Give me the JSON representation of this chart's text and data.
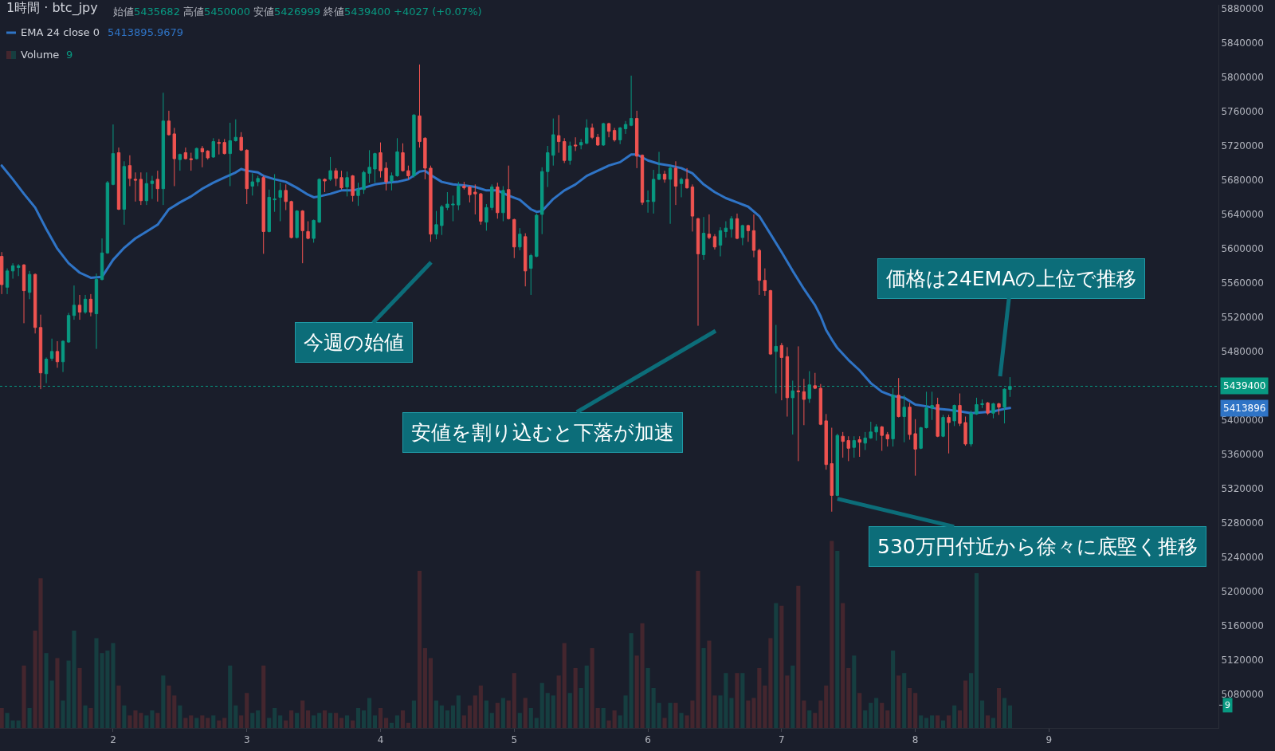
{
  "chart_data": {
    "type": "candlestick",
    "title": "1時間 · btc_jpy",
    "x": [
      1.167,
      1.208,
      1.25,
      1.292,
      1.333,
      1.375,
      1.417,
      1.458,
      1.5,
      1.542,
      1.583,
      1.625,
      1.667,
      1.708,
      1.75,
      1.792,
      1.833,
      1.875,
      1.917,
      1.958,
      2,
      2.042,
      2.083,
      2.125,
      2.167,
      2.208,
      2.25,
      2.292,
      2.333,
      2.375,
      2.417,
      2.458,
      2.5,
      2.542,
      2.583,
      2.625,
      2.667,
      2.708,
      2.75,
      2.792,
      2.833,
      2.875,
      2.917,
      2.958,
      3,
      3.042,
      3.083,
      3.125,
      3.167,
      3.208,
      3.25,
      3.292,
      3.333,
      3.375,
      3.417,
      3.458,
      3.5,
      3.542,
      3.583,
      3.625,
      3.667,
      3.708,
      3.75,
      3.792,
      3.833,
      3.875,
      3.917,
      3.958,
      4,
      4.042,
      4.083,
      4.125,
      4.167,
      4.208,
      4.25,
      4.292,
      4.333,
      4.375,
      4.417,
      4.458,
      4.5,
      4.542,
      4.583,
      4.625,
      4.667,
      4.708,
      4.75,
      4.792,
      4.833,
      4.875,
      4.917,
      4.958,
      5,
      5.042,
      5.083,
      5.125,
      5.167,
      5.208,
      5.25,
      5.292,
      5.333,
      5.375,
      5.417,
      5.458,
      5.5,
      5.542,
      5.583,
      5.625,
      5.667,
      5.708,
      5.75,
      5.792,
      5.833,
      5.875,
      5.917,
      5.958,
      6,
      6.042,
      6.083,
      6.125,
      6.167,
      6.208,
      6.25,
      6.292,
      6.333,
      6.375,
      6.417,
      6.458,
      6.5,
      6.542,
      6.583,
      6.625,
      6.667,
      6.708,
      6.75,
      6.792,
      6.833,
      6.875,
      6.917,
      6.958,
      7,
      7.042,
      7.083,
      7.125,
      7.167,
      7.208,
      7.25,
      7.292,
      7.333,
      7.375,
      7.417,
      7.458,
      7.5,
      7.542,
      7.583,
      7.625,
      7.667,
      7.708,
      7.75,
      7.792,
      7.833,
      7.875,
      7.917,
      7.958,
      8,
      8.042,
      8.083,
      8.125,
      8.167,
      8.208,
      8.25,
      8.292,
      8.333,
      8.375,
      8.417,
      8.458,
      8.5,
      8.542,
      8.583,
      8.625,
      8.667,
      8.708
    ],
    "ohlc": [
      [
        5591000,
        5596000,
        5547000,
        5558000
      ],
      [
        5555000,
        5577000,
        5547000,
        5574000
      ],
      [
        5574000,
        5583000,
        5565000,
        5580000
      ],
      [
        5578000,
        5582000,
        5568000,
        5580000
      ],
      [
        5581000,
        5582000,
        5513000,
        5551000
      ],
      [
        5549000,
        5574000,
        5541000,
        5570000
      ],
      [
        5570000,
        5571000,
        5501000,
        5508000
      ],
      [
        5508000,
        5523000,
        5436000,
        5455000
      ],
      [
        5454000,
        5473000,
        5443000,
        5471000
      ],
      [
        5472000,
        5495000,
        5469000,
        5480000
      ],
      [
        5480000,
        5492000,
        5461000,
        5468000
      ],
      [
        5468000,
        5493000,
        5456000,
        5492000
      ],
      [
        5491000,
        5525000,
        5490000,
        5522000
      ],
      [
        5522000,
        5557000,
        5517000,
        5534000
      ],
      [
        5534000,
        5546000,
        5517000,
        5526000
      ],
      [
        5526000,
        5546000,
        5524000,
        5541000
      ],
      [
        5541000,
        5547000,
        5521000,
        5526000
      ],
      [
        5524000,
        5571000,
        5483000,
        5564000
      ],
      [
        5564000,
        5612000,
        5563000,
        5595000
      ],
      [
        5595000,
        5679000,
        5594000,
        5677000
      ],
      [
        5675000,
        5745000,
        5674000,
        5711000
      ],
      [
        5712000,
        5718000,
        5645000,
        5646000
      ],
      [
        5646000,
        5702000,
        5628000,
        5696000
      ],
      [
        5697000,
        5709000,
        5673000,
        5682000
      ],
      [
        5681000,
        5689000,
        5655000,
        5680000
      ],
      [
        5681000,
        5689000,
        5651000,
        5656000
      ],
      [
        5656000,
        5689000,
        5651000,
        5676000
      ],
      [
        5676000,
        5685000,
        5658000,
        5679000
      ],
      [
        5681000,
        5691000,
        5655000,
        5670000
      ],
      [
        5670000,
        5782000,
        5651000,
        5749000
      ],
      [
        5749000,
        5761000,
        5732000,
        5733000
      ],
      [
        5734000,
        5741000,
        5673000,
        5705000
      ],
      [
        5704000,
        5711000,
        5691000,
        5710000
      ],
      [
        5712000,
        5718000,
        5704000,
        5705000
      ],
      [
        5705000,
        5712000,
        5691000,
        5704000
      ],
      [
        5705000,
        5718000,
        5704000,
        5717000
      ],
      [
        5717000,
        5720000,
        5695000,
        5713000
      ],
      [
        5714000,
        5715000,
        5704000,
        5706000
      ],
      [
        5707000,
        5729000,
        5706000,
        5725000
      ],
      [
        5724000,
        5728000,
        5710000,
        5723000
      ],
      [
        5724000,
        5728000,
        5710000,
        5711000
      ],
      [
        5711000,
        5747000,
        5673000,
        5726000
      ],
      [
        5726000,
        5751000,
        5725000,
        5730000
      ],
      [
        5730000,
        5736000,
        5714000,
        5715000
      ],
      [
        5715000,
        5716000,
        5652000,
        5670000
      ],
      [
        5673000,
        5688000,
        5662000,
        5678000
      ],
      [
        5678000,
        5685000,
        5673000,
        5682000
      ],
      [
        5683000,
        5685000,
        5594000,
        5620000
      ],
      [
        5620000,
        5669000,
        5619000,
        5660000
      ],
      [
        5657000,
        5687000,
        5643000,
        5658000
      ],
      [
        5660000,
        5677000,
        5632000,
        5668000
      ],
      [
        5668000,
        5675000,
        5645000,
        5655000
      ],
      [
        5655000,
        5656000,
        5612000,
        5613000
      ],
      [
        5613000,
        5645000,
        5612000,
        5644000
      ],
      [
        5644000,
        5645000,
        5583000,
        5621000
      ],
      [
        5620000,
        5632000,
        5611000,
        5612000
      ],
      [
        5612000,
        5634000,
        5607000,
        5633000
      ],
      [
        5631000,
        5682000,
        5630000,
        5681000
      ],
      [
        5681000,
        5682000,
        5666000,
        5679000
      ],
      [
        5681000,
        5707000,
        5679000,
        5691000
      ],
      [
        5691000,
        5694000,
        5673000,
        5682000
      ],
      [
        5683000,
        5691000,
        5669000,
        5671000
      ],
      [
        5672000,
        5690000,
        5661000,
        5683000
      ],
      [
        5685000,
        5686000,
        5655000,
        5662000
      ],
      [
        5662000,
        5677000,
        5650000,
        5669000
      ],
      [
        5669000,
        5691000,
        5664000,
        5689000
      ],
      [
        5688000,
        5715000,
        5677000,
        5695000
      ],
      [
        5693000,
        5712000,
        5677000,
        5711000
      ],
      [
        5712000,
        5724000,
        5683000,
        5691000
      ],
      [
        5694000,
        5701000,
        5668000,
        5678000
      ],
      [
        5679000,
        5689000,
        5668000,
        5685000
      ],
      [
        5685000,
        5729000,
        5684000,
        5713000
      ],
      [
        5712000,
        5723000,
        5690000,
        5691000
      ],
      [
        5691000,
        5697000,
        5681000,
        5685000
      ],
      [
        5685000,
        5757000,
        5683000,
        5756000
      ],
      [
        5755000,
        5815000,
        5718000,
        5725000
      ],
      [
        5729000,
        5730000,
        5681000,
        5694000
      ],
      [
        5694000,
        5697000,
        5608000,
        5617000
      ],
      [
        5617000,
        5644000,
        5611000,
        5628000
      ],
      [
        5627000,
        5651000,
        5616000,
        5649000
      ],
      [
        5648000,
        5666000,
        5645000,
        5652000
      ],
      [
        5651000,
        5662000,
        5632000,
        5652000
      ],
      [
        5651000,
        5678000,
        5645000,
        5673000
      ],
      [
        5673000,
        5678000,
        5669000,
        5671000
      ],
      [
        5672000,
        5673000,
        5654000,
        5663000
      ],
      [
        5666000,
        5675000,
        5640000,
        5664000
      ],
      [
        5664000,
        5665000,
        5628000,
        5632000
      ],
      [
        5631000,
        5652000,
        5621000,
        5648000
      ],
      [
        5648000,
        5675000,
        5645000,
        5672000
      ],
      [
        5672000,
        5677000,
        5635000,
        5642000
      ],
      [
        5642000,
        5673000,
        5632000,
        5668000
      ],
      [
        5669000,
        5697000,
        5634000,
        5635000
      ],
      [
        5634000,
        5635000,
        5589000,
        5602000
      ],
      [
        5602000,
        5624000,
        5598000,
        5617000
      ],
      [
        5614000,
        5618000,
        5556000,
        5574000
      ],
      [
        5577000,
        5594000,
        5546000,
        5592000
      ],
      [
        5591000,
        5641000,
        5590000,
        5639000
      ],
      [
        5640000,
        5695000,
        5617000,
        5690000
      ],
      [
        5690000,
        5720000,
        5672000,
        5712000
      ],
      [
        5709000,
        5752000,
        5697000,
        5733000
      ],
      [
        5732000,
        5756000,
        5712000,
        5725000
      ],
      [
        5725000,
        5729000,
        5700000,
        5703000
      ],
      [
        5703000,
        5725000,
        5698000,
        5720000
      ],
      [
        5721000,
        5730000,
        5714000,
        5720000
      ],
      [
        5721000,
        5728000,
        5716000,
        5724000
      ],
      [
        5723000,
        5751000,
        5722000,
        5741000
      ],
      [
        5741000,
        5746000,
        5728000,
        5730000
      ],
      [
        5730000,
        5734000,
        5720000,
        5721000
      ],
      [
        5721000,
        5747000,
        5720000,
        5746000
      ],
      [
        5746000,
        5747000,
        5730000,
        5737000
      ],
      [
        5738000,
        5741000,
        5725000,
        5727000
      ],
      [
        5727000,
        5742000,
        5722000,
        5741000
      ],
      [
        5740000,
        5749000,
        5734000,
        5745000
      ],
      [
        5744000,
        5802000,
        5743000,
        5752000
      ],
      [
        5752000,
        5761000,
        5694000,
        5708000
      ],
      [
        5709000,
        5710000,
        5651000,
        5654000
      ],
      [
        5655000,
        5668000,
        5642000,
        5656000
      ],
      [
        5655000,
        5692000,
        5641000,
        5681000
      ],
      [
        5681000,
        5713000,
        5680000,
        5687000
      ],
      [
        5687000,
        5691000,
        5677000,
        5681000
      ],
      [
        5681000,
        5697000,
        5629000,
        5694000
      ],
      [
        5694000,
        5702000,
        5651000,
        5673000
      ],
      [
        5676000,
        5683000,
        5660000,
        5681000
      ],
      [
        5681000,
        5694000,
        5670000,
        5671000
      ],
      [
        5672000,
        5675000,
        5620000,
        5638000
      ],
      [
        5635000,
        5636000,
        5510000,
        5594000
      ],
      [
        5593000,
        5637000,
        5587000,
        5618000
      ],
      [
        5617000,
        5640000,
        5611000,
        5613000
      ],
      [
        5614000,
        5617000,
        5599000,
        5602000
      ],
      [
        5604000,
        5625000,
        5591000,
        5621000
      ],
      [
        5620000,
        5632000,
        5613000,
        5624000
      ],
      [
        5623000,
        5638000,
        5613000,
        5635000
      ],
      [
        5635000,
        5641000,
        5611000,
        5612000
      ],
      [
        5613000,
        5628000,
        5604000,
        5627000
      ],
      [
        5627000,
        5628000,
        5608000,
        5621000
      ],
      [
        5621000,
        5640000,
        5590000,
        5598000
      ],
      [
        5598000,
        5600000,
        5546000,
        5563000
      ],
      [
        5563000,
        5577000,
        5545000,
        5551000
      ],
      [
        5551000,
        5552000,
        5476000,
        5477000
      ],
      [
        5480000,
        5511000,
        5431000,
        5486000
      ],
      [
        5487000,
        5490000,
        5423000,
        5473000
      ],
      [
        5474000,
        5485000,
        5404000,
        5426000
      ],
      [
        5426000,
        5446000,
        5383000,
        5434000
      ],
      [
        5434000,
        5486000,
        5352000,
        5433000
      ],
      [
        5433000,
        5448000,
        5394000,
        5424000
      ],
      [
        5425000,
        5457000,
        5420000,
        5441000
      ],
      [
        5440000,
        5455000,
        5436000,
        5437000
      ],
      [
        5437000,
        5442000,
        5394000,
        5395000
      ],
      [
        5399000,
        5407000,
        5342000,
        5348000
      ],
      [
        5349000,
        5391000,
        5293000,
        5312000
      ],
      [
        5312000,
        5384000,
        5311000,
        5382000
      ],
      [
        5381000,
        5386000,
        5356000,
        5375000
      ],
      [
        5376000,
        5381000,
        5352000,
        5367000
      ],
      [
        5368000,
        5381000,
        5356000,
        5376000
      ],
      [
        5377000,
        5381000,
        5357000,
        5374000
      ],
      [
        5373000,
        5386000,
        5365000,
        5379000
      ],
      [
        5379000,
        5398000,
        5378000,
        5386000
      ],
      [
        5386000,
        5395000,
        5376000,
        5392000
      ],
      [
        5392000,
        5393000,
        5364000,
        5382000
      ],
      [
        5383000,
        5386000,
        5369000,
        5378000
      ],
      [
        5378000,
        5437000,
        5369000,
        5429000
      ],
      [
        5429000,
        5449000,
        5403000,
        5404000
      ],
      [
        5404000,
        5429000,
        5374000,
        5415000
      ],
      [
        5415000,
        5420000,
        5377000,
        5383000
      ],
      [
        5384000,
        5401000,
        5335000,
        5366000
      ],
      [
        5367000,
        5392000,
        5366000,
        5391000
      ],
      [
        5391000,
        5433000,
        5390000,
        5414000
      ],
      [
        5414000,
        5433000,
        5400000,
        5417000
      ],
      [
        5418000,
        5426000,
        5380000,
        5381000
      ],
      [
        5381000,
        5406000,
        5380000,
        5403000
      ],
      [
        5403000,
        5406000,
        5361000,
        5397000
      ],
      [
        5399000,
        5418000,
        5393000,
        5417000
      ],
      [
        5417000,
        5431000,
        5393000,
        5396000
      ],
      [
        5397000,
        5404000,
        5370000,
        5372000
      ],
      [
        5372000,
        5411000,
        5369000,
        5408000
      ],
      [
        5407000,
        5426000,
        5406000,
        5418000
      ],
      [
        5418000,
        5424000,
        5414000,
        5419000
      ],
      [
        5420000,
        5421000,
        5406000,
        5408000
      ],
      [
        5408000,
        5420000,
        5402000,
        5419000
      ],
      [
        5419000,
        5420000,
        5406000,
        5415000
      ],
      [
        5415000,
        5437000,
        5396000,
        5436000
      ],
      [
        5435682,
        5450000,
        5426999,
        5439400
      ]
    ],
    "colors": [
      "#ef5350",
      "#089981",
      "#089981",
      "#089981",
      "#ef5350",
      "#089981",
      "#ef5350",
      "#ef5350",
      "#089981",
      "#089981",
      "#ef5350",
      "#089981",
      "#089981",
      "#089981",
      "#ef5350",
      "#089981",
      "#ef5350",
      "#089981",
      "#089981",
      "#089981",
      "#089981",
      "#ef5350",
      "#089981",
      "#ef5350",
      "#ef5350",
      "#ef5350",
      "#089981",
      "#089981",
      "#ef5350",
      "#089981",
      "#ef5350",
      "#ef5350",
      "#089981",
      "#ef5350",
      "#ef5350",
      "#089981",
      "#ef5350",
      "#ef5350",
      "#089981",
      "#ef5350",
      "#ef5350",
      "#089981",
      "#089981",
      "#ef5350",
      "#ef5350",
      "#089981",
      "#089981",
      "#ef5350",
      "#089981",
      "#089981",
      "#089981",
      "#ef5350",
      "#ef5350",
      "#089981",
      "#ef5350",
      "#ef5350",
      "#089981",
      "#089981",
      "#ef5350",
      "#089981",
      "#ef5350",
      "#ef5350",
      "#089981",
      "#ef5350",
      "#089981",
      "#089981",
      "#089981",
      "#089981",
      "#ef5350",
      "#ef5350",
      "#089981",
      "#089981",
      "#ef5350",
      "#ef5350",
      "#089981",
      "#ef5350",
      "#ef5350",
      "#ef5350",
      "#089981",
      "#089981",
      "#089981",
      "#089981",
      "#089981",
      "#ef5350",
      "#ef5350",
      "#ef5350",
      "#ef5350",
      "#089981",
      "#089981",
      "#ef5350",
      "#089981",
      "#ef5350",
      "#ef5350",
      "#089981",
      "#ef5350",
      "#089981",
      "#089981",
      "#089981",
      "#089981",
      "#089981",
      "#ef5350",
      "#ef5350",
      "#089981",
      "#ef5350",
      "#089981",
      "#089981",
      "#ef5350",
      "#ef5350",
      "#089981",
      "#ef5350",
      "#ef5350",
      "#089981",
      "#089981",
      "#089981",
      "#ef5350",
      "#ef5350",
      "#089981",
      "#089981",
      "#089981",
      "#ef5350",
      "#089981",
      "#ef5350",
      "#089981",
      "#ef5350",
      "#ef5350",
      "#ef5350",
      "#089981",
      "#ef5350",
      "#ef5350",
      "#089981",
      "#089981",
      "#089981",
      "#ef5350",
      "#089981",
      "#ef5350",
      "#ef5350",
      "#ef5350",
      "#ef5350",
      "#ef5350",
      "#089981",
      "#ef5350",
      "#ef5350",
      "#089981",
      "#ef5350",
      "#ef5350",
      "#089981",
      "#ef5350",
      "#ef5350",
      "#ef5350",
      "#ef5350",
      "#089981",
      "#ef5350",
      "#ef5350",
      "#089981",
      "#ef5350",
      "#089981",
      "#089981",
      "#089981",
      "#ef5350",
      "#ef5350",
      "#089981",
      "#ef5350",
      "#089981",
      "#ef5350",
      "#ef5350",
      "#089981",
      "#089981",
      "#089981",
      "#ef5350",
      "#089981",
      "#ef5350",
      "#089981",
      "#ef5350",
      "#ef5350",
      "#089981",
      "#089981",
      "#089981",
      "#ef5350",
      "#089981",
      "#ef5350",
      "#089981",
      "#089981"
    ],
    "series": [
      {
        "name": "EMA 24 close 0",
        "type": "line",
        "color": "#2f74c6",
        "x": [
          1.167,
          1.25,
          1.333,
          1.417,
          1.5,
          1.583,
          1.667,
          1.75,
          1.833,
          1.917,
          2,
          2.083,
          2.167,
          2.25,
          2.333,
          2.417,
          2.5,
          2.583,
          2.667,
          2.75,
          2.833,
          2.917,
          2.958,
          3,
          3.083,
          3.125,
          3.208,
          3.292,
          3.375,
          3.458,
          3.5,
          3.542,
          3.625,
          3.708,
          3.792,
          3.875,
          3.958,
          4.042,
          4.125,
          4.208,
          4.292,
          4.333,
          4.375,
          4.458,
          4.542,
          4.625,
          4.708,
          4.792,
          4.875,
          4.958,
          5.042,
          5.125,
          5.167,
          5.208,
          5.292,
          5.375,
          5.458,
          5.542,
          5.625,
          5.708,
          5.792,
          5.875,
          5.917,
          6,
          6.083,
          6.167,
          6.25,
          6.333,
          6.417,
          6.5,
          6.583,
          6.667,
          6.75,
          6.833,
          6.917,
          7,
          7.083,
          7.167,
          7.25,
          7.292,
          7.333,
          7.375,
          7.417,
          7.5,
          7.583,
          7.667,
          7.75,
          7.833,
          7.917,
          8,
          8.083,
          8.167,
          8.25,
          8.333,
          8.417,
          8.5,
          8.583,
          8.667,
          8.708
        ],
        "values": [
          5697000,
          5681000,
          5664000,
          5648000,
          5623000,
          5600000,
          5583000,
          5572000,
          5566000,
          5567000,
          5587000,
          5601000,
          5612000,
          5620000,
          5628000,
          5646000,
          5654000,
          5661000,
          5670000,
          5677000,
          5683000,
          5689000,
          5693000,
          5691000,
          5689000,
          5685000,
          5681000,
          5678000,
          5671000,
          5663000,
          5660000,
          5661000,
          5664000,
          5668000,
          5668000,
          5671000,
          5675000,
          5677000,
          5678000,
          5681000,
          5690000,
          5691000,
          5686000,
          5678000,
          5675000,
          5674000,
          5672000,
          5668000,
          5668000,
          5662000,
          5657000,
          5646000,
          5643000,
          5644000,
          5658000,
          5668000,
          5675000,
          5685000,
          5691000,
          5697000,
          5701000,
          5710000,
          5710000,
          5703000,
          5699000,
          5697000,
          5694000,
          5688000,
          5675000,
          5666000,
          5659000,
          5654000,
          5649000,
          5638000,
          5617000,
          5596000,
          5574000,
          5553000,
          5534000,
          5521000,
          5505000,
          5494000,
          5484000,
          5470000,
          5458000,
          5443000,
          5433000,
          5428000,
          5426000,
          5418000,
          5416000,
          5413000,
          5412000,
          5410000,
          5408000,
          5409000,
          5410000,
          5413000,
          5414000
        ]
      },
      {
        "name": "Volume",
        "type": "bar",
        "axis": "y2",
        "colors": [
          "#44262e",
          "#163e40",
          "#163e40",
          "#163e40",
          "#44262e",
          "#163e40",
          "#44262e",
          "#44262e",
          "#163e40",
          "#163e40",
          "#44262e",
          "#163e40",
          "#163e40",
          "#163e40",
          "#44262e",
          "#163e40",
          "#44262e",
          "#163e40",
          "#163e40",
          "#163e40",
          "#163e40",
          "#44262e",
          "#163e40",
          "#44262e",
          "#44262e",
          "#44262e",
          "#163e40",
          "#163e40",
          "#44262e",
          "#163e40",
          "#44262e",
          "#44262e",
          "#163e40",
          "#44262e",
          "#44262e",
          "#163e40",
          "#44262e",
          "#44262e",
          "#163e40",
          "#44262e",
          "#44262e",
          "#163e40",
          "#163e40",
          "#44262e",
          "#44262e",
          "#163e40",
          "#163e40",
          "#44262e",
          "#163e40",
          "#163e40",
          "#163e40",
          "#44262e",
          "#44262e",
          "#163e40",
          "#44262e",
          "#44262e",
          "#163e40",
          "#163e40",
          "#44262e",
          "#163e40",
          "#44262e",
          "#44262e",
          "#163e40",
          "#44262e",
          "#163e40",
          "#163e40",
          "#163e40",
          "#163e40",
          "#44262e",
          "#44262e",
          "#163e40",
          "#163e40",
          "#44262e",
          "#44262e",
          "#163e40",
          "#44262e",
          "#44262e",
          "#44262e",
          "#163e40",
          "#163e40",
          "#163e40",
          "#163e40",
          "#163e40",
          "#44262e",
          "#44262e",
          "#44262e",
          "#44262e",
          "#163e40",
          "#163e40",
          "#44262e",
          "#163e40",
          "#44262e",
          "#44262e",
          "#163e40",
          "#44262e",
          "#163e40",
          "#163e40",
          "#163e40",
          "#163e40",
          "#163e40",
          "#44262e",
          "#44262e",
          "#163e40",
          "#44262e",
          "#163e40",
          "#163e40",
          "#44262e",
          "#44262e",
          "#163e40",
          "#44262e",
          "#44262e",
          "#163e40",
          "#163e40",
          "#163e40",
          "#44262e",
          "#44262e",
          "#163e40",
          "#163e40",
          "#163e40",
          "#44262e",
          "#163e40",
          "#44262e",
          "#163e40",
          "#44262e",
          "#44262e",
          "#44262e",
          "#163e40",
          "#44262e",
          "#44262e",
          "#163e40",
          "#163e40",
          "#163e40",
          "#44262e",
          "#163e40",
          "#44262e",
          "#44262e",
          "#44262e",
          "#44262e",
          "#44262e",
          "#163e40",
          "#44262e",
          "#44262e",
          "#163e40",
          "#44262e",
          "#44262e",
          "#163e40",
          "#44262e",
          "#44262e",
          "#44262e",
          "#44262e",
          "#163e40",
          "#44262e",
          "#44262e",
          "#163e40",
          "#44262e",
          "#163e40",
          "#163e40",
          "#163e40",
          "#44262e",
          "#44262e",
          "#163e40",
          "#44262e",
          "#163e40",
          "#44262e",
          "#44262e",
          "#163e40",
          "#163e40",
          "#163e40",
          "#44262e",
          "#163e40",
          "#44262e",
          "#163e40",
          "#44262e",
          "#44262e",
          "#163e40",
          "#163e40",
          "#163e40",
          "#44262e",
          "#163e40",
          "#44262e",
          "#163e40",
          "#163e40"
        ],
        "values": [
          8,
          6,
          3,
          3,
          25,
          8,
          39,
          60,
          30,
          19,
          28,
          11,
          27,
          39,
          24,
          9,
          8,
          36,
          30,
          31,
          34,
          17,
          9,
          5,
          7,
          6,
          5,
          7,
          6,
          21,
          17,
          13,
          9,
          4,
          5,
          4,
          5,
          4,
          5,
          3,
          4,
          25,
          9,
          5,
          14,
          6,
          7,
          25,
          4,
          8,
          5,
          3,
          7,
          6,
          11,
          7,
          5,
          6,
          7,
          6,
          6,
          4,
          5,
          3,
          8,
          7,
          12,
          5,
          8,
          4,
          2,
          5,
          7,
          2,
          11,
          63,
          32,
          28,
          11,
          9,
          7,
          9,
          13,
          5,
          9,
          13,
          17,
          11,
          6,
          10,
          12,
          11,
          22,
          6,
          12,
          8,
          4,
          18,
          14,
          13,
          21,
          34,
          14,
          24,
          16,
          25,
          32,
          8,
          8,
          3,
          7,
          5,
          13,
          38,
          29,
          42,
          24,
          16,
          10,
          4,
          10,
          10,
          6,
          5,
          11,
          63,
          32,
          35,
          13,
          13,
          22,
          12,
          22,
          22,
          11,
          12,
          24,
          17,
          36,
          50,
          49,
          21,
          25,
          57,
          11,
          7,
          6,
          11,
          17,
          75,
          71,
          50,
          24,
          29,
          14,
          7,
          10,
          12,
          10,
          7,
          31,
          21,
          22,
          16,
          14,
          5,
          4,
          5,
          5,
          3,
          5,
          9,
          7,
          19,
          22,
          62,
          11,
          5,
          4,
          16,
          12,
          9
        ]
      }
    ],
    "xlim": [
      1.154,
      10.267
    ],
    "xticks": [
      2,
      3,
      4,
      5,
      6,
      7,
      8,
      9
    ],
    "ylim": [
      5040600,
      5884700
    ],
    "yticks": [
      5080000,
      5120000,
      5160000,
      5200000,
      5240000,
      5280000,
      5320000,
      5360000,
      5400000,
      5480000,
      5520000,
      5560000,
      5600000,
      5640000,
      5680000,
      5720000,
      5760000,
      5800000,
      5840000,
      5880000
    ],
    "y2lim": [
      0,
      290
    ],
    "y2ticks": [
      9
    ],
    "ref_lines": [
      {
        "axis": "y",
        "value": 5439400,
        "label": "5439400",
        "color": "#089981",
        "line_style": "dotted"
      }
    ],
    "annotations": [
      "始値5435682 高値5450000 安値5426999 終値5439400 +4027 (+0.07%)",
      "5413895.9679",
      "9",
      "5413896",
      "今週の始値",
      "安値を割り込むと下落が加速",
      "価格は24EMAの上位で推移",
      {
        "text": "530万円付近から徐々に底堅く推移",
        "x": 7.417,
        "y": 5308000
      }
    ],
    "legend": "top left"
  }
}
